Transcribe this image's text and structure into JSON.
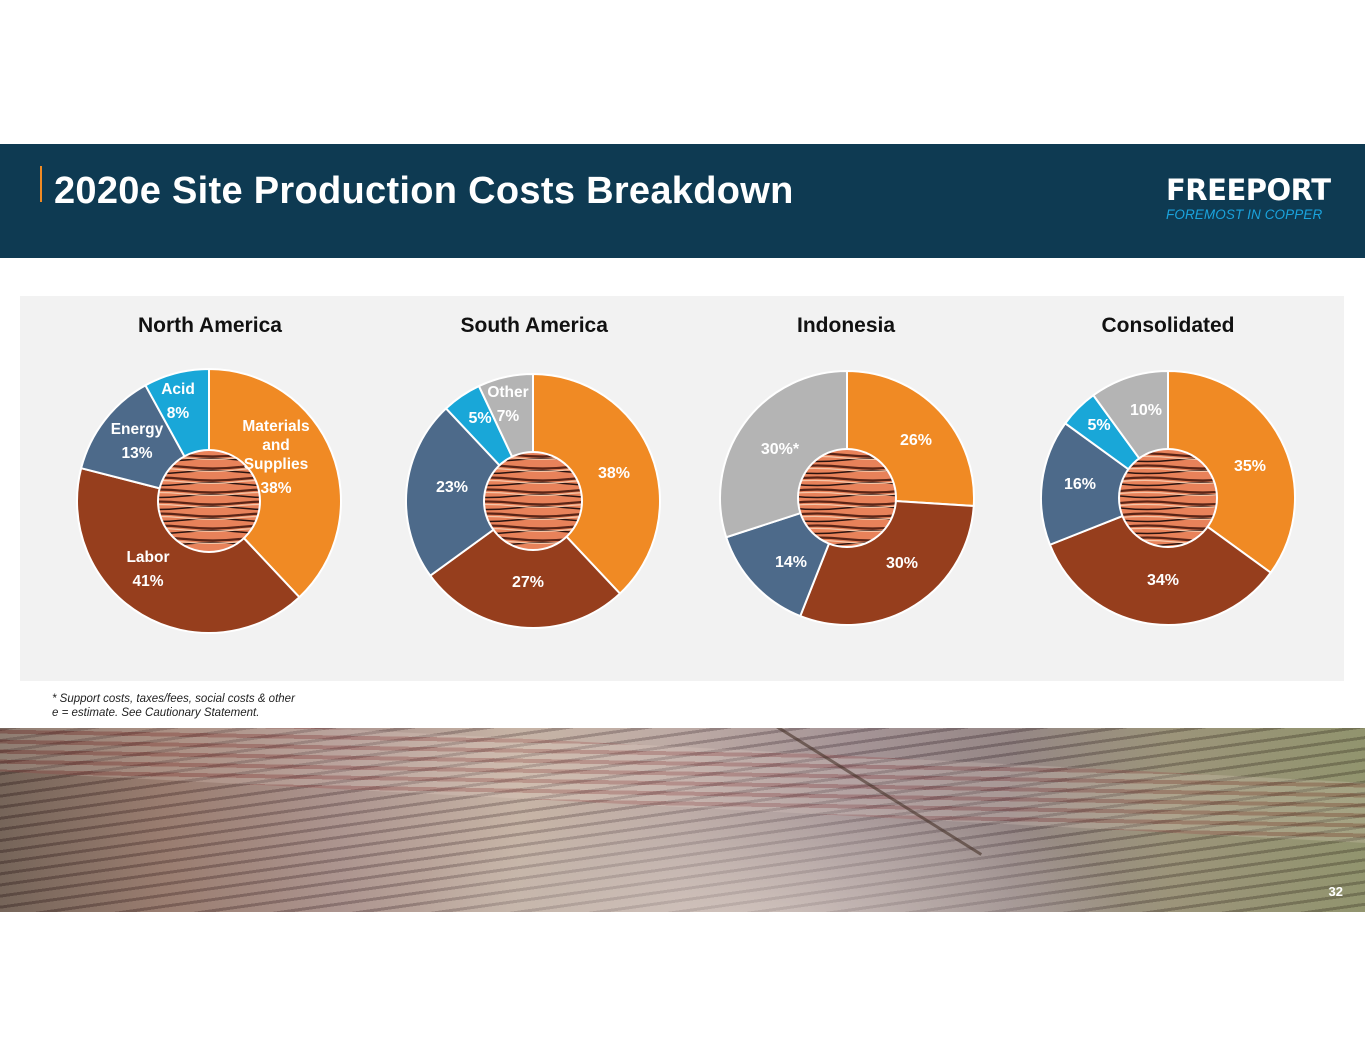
{
  "header": {
    "title": "2020e Site Production Costs Breakdown",
    "logo_brand": "FREEPORT",
    "logo_tagline": "FOREMOST IN COPPER"
  },
  "colors": {
    "header_bg": "#0e3a52",
    "materials_orange": "#f08a24",
    "labor_brown": "#963e1d",
    "energy_slate": "#4d6a8a",
    "acid_cyan": "#19a7d8",
    "other_gray": "#b4b4b4"
  },
  "icons": {
    "pie_center": "copper-cathode-image"
  },
  "chart_data": [
    {
      "type": "pie",
      "title": "North America",
      "series": [
        {
          "name": "Materials and Supplies",
          "value": 38,
          "label": "38%",
          "color": "#f08a24"
        },
        {
          "name": "Labor",
          "value": 41,
          "label": "41%",
          "color": "#963e1d"
        },
        {
          "name": "Energy",
          "value": 13,
          "label": "13%",
          "color": "#4d6a8a"
        },
        {
          "name": "Acid",
          "value": 8,
          "label": "8%",
          "color": "#19a7d8"
        }
      ]
    },
    {
      "type": "pie",
      "title": "South America",
      "series": [
        {
          "name": "",
          "value": 38,
          "label": "38%",
          "color": "#f08a24"
        },
        {
          "name": "",
          "value": 27,
          "label": "27%",
          "color": "#963e1d"
        },
        {
          "name": "",
          "value": 23,
          "label": "23%",
          "color": "#4d6a8a"
        },
        {
          "name": "",
          "value": 5,
          "label": "5%",
          "color": "#19a7d8"
        },
        {
          "name": "Other",
          "value": 7,
          "label": "7%",
          "color": "#b4b4b4"
        }
      ]
    },
    {
      "type": "pie",
      "title": "Indonesia",
      "series": [
        {
          "name": "",
          "value": 26,
          "label": "26%",
          "color": "#f08a24"
        },
        {
          "name": "",
          "value": 30,
          "label": "30%",
          "color": "#963e1d"
        },
        {
          "name": "",
          "value": 14,
          "label": "14%",
          "color": "#4d6a8a"
        },
        {
          "name": "",
          "value": 30,
          "label": "30%*",
          "color": "#b4b4b4"
        }
      ]
    },
    {
      "type": "pie",
      "title": "Consolidated",
      "series": [
        {
          "name": "",
          "value": 35,
          "label": "35%",
          "color": "#f08a24"
        },
        {
          "name": "",
          "value": 34,
          "label": "34%",
          "color": "#963e1d"
        },
        {
          "name": "",
          "value": 16,
          "label": "16%",
          "color": "#4d6a8a"
        },
        {
          "name": "",
          "value": 5,
          "label": "5%",
          "color": "#19a7d8"
        },
        {
          "name": "",
          "value": 10,
          "label": "10%",
          "color": "#b4b4b4"
        }
      ]
    }
  ],
  "notes": {
    "line1": "* Support costs, taxes/fees, social costs & other",
    "line2": "e = estimate. See Cautionary Statement."
  },
  "page_number": "32"
}
